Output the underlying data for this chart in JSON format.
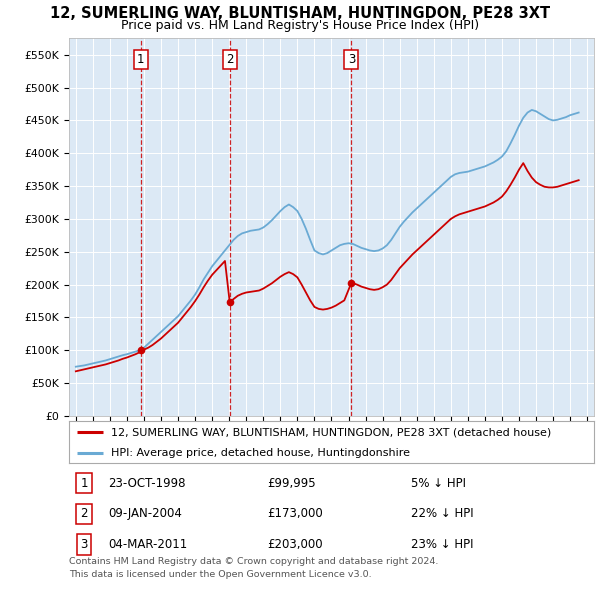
{
  "title": "12, SUMERLING WAY, BLUNTISHAM, HUNTINGDON, PE28 3XT",
  "subtitle": "Price paid vs. HM Land Registry's House Price Index (HPI)",
  "legend_label_red": "12, SUMERLING WAY, BLUNTISHAM, HUNTINGDON, PE28 3XT (detached house)",
  "legend_label_blue": "HPI: Average price, detached house, Huntingdonshire",
  "footer_line1": "Contains HM Land Registry data © Crown copyright and database right 2024.",
  "footer_line2": "This data is licensed under the Open Government Licence v3.0.",
  "sales": [
    {
      "num": 1,
      "date": "23-OCT-1998",
      "price": "£99,995",
      "pct": "5% ↓ HPI",
      "year": 1998.81,
      "value": 99995
    },
    {
      "num": 2,
      "date": "09-JAN-2004",
      "price": "£173,000",
      "pct": "22% ↓ HPI",
      "year": 2004.03,
      "value": 173000
    },
    {
      "num": 3,
      "date": "04-MAR-2011",
      "price": "£203,000",
      "pct": "23% ↓ HPI",
      "year": 2011.17,
      "value": 203000
    }
  ],
  "hpi_years": [
    1995.0,
    1995.25,
    1995.5,
    1995.75,
    1996.0,
    1996.25,
    1996.5,
    1996.75,
    1997.0,
    1997.25,
    1997.5,
    1997.75,
    1998.0,
    1998.25,
    1998.5,
    1998.75,
    1999.0,
    1999.25,
    1999.5,
    1999.75,
    2000.0,
    2000.25,
    2000.5,
    2000.75,
    2001.0,
    2001.25,
    2001.5,
    2001.75,
    2002.0,
    2002.25,
    2002.5,
    2002.75,
    2003.0,
    2003.25,
    2003.5,
    2003.75,
    2004.0,
    2004.25,
    2004.5,
    2004.75,
    2005.0,
    2005.25,
    2005.5,
    2005.75,
    2006.0,
    2006.25,
    2006.5,
    2006.75,
    2007.0,
    2007.25,
    2007.5,
    2007.75,
    2008.0,
    2008.25,
    2008.5,
    2008.75,
    2009.0,
    2009.25,
    2009.5,
    2009.75,
    2010.0,
    2010.25,
    2010.5,
    2010.75,
    2011.0,
    2011.25,
    2011.5,
    2011.75,
    2012.0,
    2012.25,
    2012.5,
    2012.75,
    2013.0,
    2013.25,
    2013.5,
    2013.75,
    2014.0,
    2014.25,
    2014.5,
    2014.75,
    2015.0,
    2015.25,
    2015.5,
    2015.75,
    2016.0,
    2016.25,
    2016.5,
    2016.75,
    2017.0,
    2017.25,
    2017.5,
    2017.75,
    2018.0,
    2018.25,
    2018.5,
    2018.75,
    2019.0,
    2019.25,
    2019.5,
    2019.75,
    2020.0,
    2020.25,
    2020.5,
    2020.75,
    2021.0,
    2021.25,
    2021.5,
    2021.75,
    2022.0,
    2022.25,
    2022.5,
    2022.75,
    2023.0,
    2023.25,
    2023.5,
    2023.75,
    2024.0,
    2024.25,
    2024.5
  ],
  "hpi_values": [
    75000,
    76000,
    77000,
    78500,
    80000,
    81500,
    83000,
    84500,
    86500,
    88500,
    90500,
    92500,
    94000,
    96000,
    98000,
    100000,
    104000,
    110000,
    116000,
    122000,
    128000,
    134000,
    140000,
    146000,
    152000,
    160000,
    168000,
    176000,
    185000,
    196000,
    208000,
    218000,
    228000,
    236000,
    244000,
    252000,
    260000,
    268000,
    274000,
    278000,
    280000,
    282000,
    283000,
    284000,
    287000,
    292000,
    298000,
    305000,
    312000,
    318000,
    322000,
    318000,
    312000,
    300000,
    285000,
    268000,
    252000,
    248000,
    246000,
    248000,
    252000,
    256000,
    260000,
    262000,
    263000,
    262000,
    259000,
    256000,
    254000,
    252000,
    251000,
    252000,
    255000,
    260000,
    268000,
    278000,
    288000,
    296000,
    303000,
    310000,
    316000,
    322000,
    328000,
    334000,
    340000,
    346000,
    352000,
    358000,
    364000,
    368000,
    370000,
    371000,
    372000,
    374000,
    376000,
    378000,
    380000,
    383000,
    386000,
    390000,
    395000,
    403000,
    415000,
    428000,
    442000,
    454000,
    462000,
    466000,
    464000,
    460000,
    456000,
    452000,
    450000,
    451000,
    453000,
    455000,
    458000,
    460000,
    462000
  ],
  "red_years": [
    1995.0,
    1995.25,
    1995.5,
    1995.75,
    1996.0,
    1996.25,
    1996.5,
    1996.75,
    1997.0,
    1997.25,
    1997.5,
    1997.75,
    1998.0,
    1998.25,
    1998.5,
    1998.75,
    1998.81,
    1999.0,
    1999.25,
    1999.5,
    1999.75,
    2000.0,
    2000.25,
    2000.5,
    2000.75,
    2001.0,
    2001.25,
    2001.5,
    2001.75,
    2002.0,
    2002.25,
    2002.5,
    2002.75,
    2003.0,
    2003.25,
    2003.5,
    2003.75,
    2004.03,
    2004.25,
    2004.5,
    2004.75,
    2005.0,
    2005.25,
    2005.5,
    2005.75,
    2006.0,
    2006.25,
    2006.5,
    2006.75,
    2007.0,
    2007.25,
    2007.5,
    2007.75,
    2008.0,
    2008.25,
    2008.5,
    2008.75,
    2009.0,
    2009.25,
    2009.5,
    2009.75,
    2010.0,
    2010.25,
    2010.5,
    2010.75,
    2011.17,
    2011.5,
    2011.75,
    2012.0,
    2012.25,
    2012.5,
    2012.75,
    2013.0,
    2013.25,
    2013.5,
    2013.75,
    2014.0,
    2014.25,
    2014.5,
    2014.75,
    2015.0,
    2015.25,
    2015.5,
    2015.75,
    2016.0,
    2016.25,
    2016.5,
    2016.75,
    2017.0,
    2017.25,
    2017.5,
    2017.75,
    2018.0,
    2018.25,
    2018.5,
    2018.75,
    2019.0,
    2019.25,
    2019.5,
    2019.75,
    2020.0,
    2020.25,
    2020.5,
    2020.75,
    2021.0,
    2021.25,
    2021.5,
    2021.75,
    2022.0,
    2022.25,
    2022.5,
    2022.75,
    2023.0,
    2023.25,
    2023.5,
    2023.75,
    2024.0,
    2024.25,
    2024.5
  ],
  "red_values": [
    68000,
    69500,
    71000,
    72500,
    74000,
    75500,
    77000,
    78500,
    80500,
    82500,
    84500,
    87000,
    89000,
    91500,
    94000,
    97000,
    99995,
    101000,
    104000,
    108000,
    113000,
    118000,
    124000,
    130000,
    136000,
    142000,
    150000,
    158000,
    166000,
    175000,
    185000,
    196000,
    206000,
    215000,
    222000,
    229000,
    236000,
    173000,
    178000,
    183000,
    186000,
    188000,
    189000,
    190000,
    191000,
    194000,
    198000,
    202000,
    207000,
    212000,
    216000,
    219000,
    216000,
    211000,
    200000,
    188000,
    176000,
    166000,
    163000,
    162000,
    163000,
    165000,
    168000,
    172000,
    176000,
    203000,
    200000,
    197000,
    195000,
    193000,
    192000,
    193000,
    196000,
    200000,
    207000,
    216000,
    225000,
    232000,
    239000,
    246000,
    252000,
    258000,
    264000,
    270000,
    276000,
    282000,
    288000,
    294000,
    300000,
    304000,
    307000,
    309000,
    311000,
    313000,
    315000,
    317000,
    319000,
    322000,
    325000,
    329000,
    334000,
    342000,
    352000,
    363000,
    375000,
    385000,
    373000,
    363000,
    356000,
    352000,
    349000,
    348000,
    348000,
    349000,
    351000,
    353000,
    355000,
    357000,
    359000
  ],
  "ylim": [
    0,
    575000
  ],
  "xlim_start": 1994.6,
  "xlim_end": 2025.4,
  "bg_color": "#dce9f5",
  "red_color": "#cc0000",
  "blue_color": "#6aaad4",
  "title_fontsize": 10.5,
  "subtitle_fontsize": 9.0,
  "legend_fontsize": 8.0,
  "table_fontsize": 8.5,
  "footer_fontsize": 6.8
}
